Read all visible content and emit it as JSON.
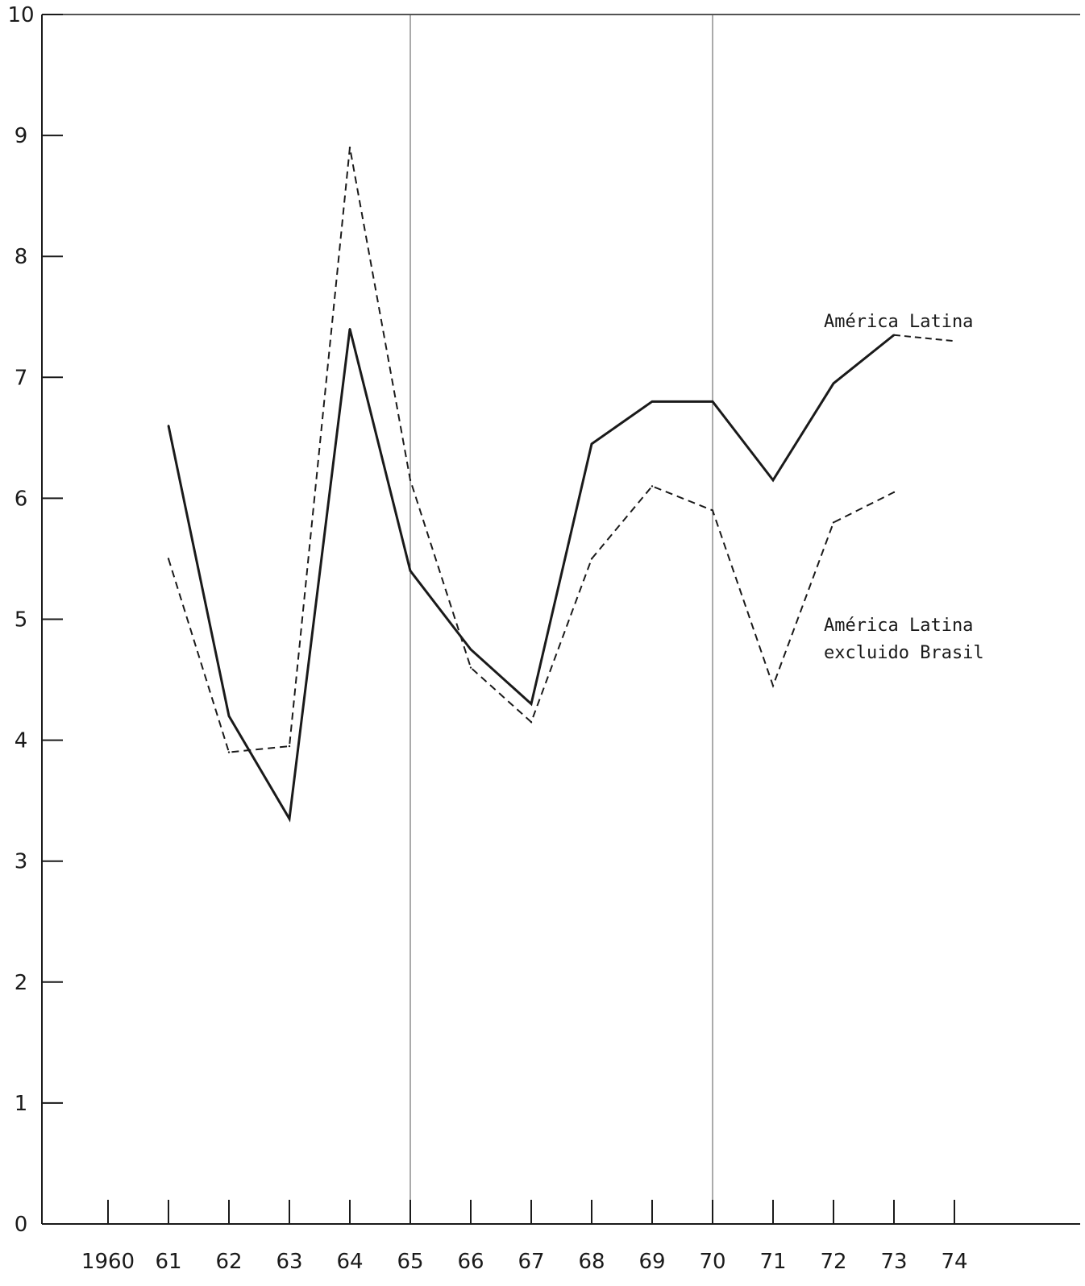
{
  "chart_data": {
    "type": "line",
    "x": [
      1961,
      1962,
      1963,
      1964,
      1965,
      1966,
      1967,
      1968,
      1969,
      1970,
      1971,
      1972,
      1973,
      1974
    ],
    "x_tick_labels": [
      "1960",
      "61",
      "62",
      "63",
      "64",
      "65",
      "66",
      "67",
      "68",
      "69",
      "70",
      "71",
      "72",
      "73",
      "74"
    ],
    "x_tick_values": [
      1960,
      1961,
      1962,
      1963,
      1964,
      1965,
      1966,
      1967,
      1968,
      1969,
      1970,
      1971,
      1972,
      1973,
      1974
    ],
    "y_tick_labels": [
      "0",
      "1",
      "2",
      "3",
      "4",
      "5",
      "6",
      "7",
      "8",
      "9",
      "10"
    ],
    "y_tick_values": [
      0,
      1,
      2,
      3,
      4,
      5,
      6,
      7,
      8,
      9,
      10
    ],
    "xlim": [
      1959,
      1975.5
    ],
    "ylim": [
      0,
      10
    ],
    "vertical_reference_lines": [
      1965,
      1970
    ],
    "grid": false,
    "series": [
      {
        "name": "América Latina",
        "style": "solid",
        "points": [
          [
            1961,
            6.6
          ],
          [
            1962,
            4.2
          ],
          [
            1963,
            3.35
          ],
          [
            1964,
            7.4
          ],
          [
            1965,
            5.4
          ],
          [
            1966,
            4.75
          ],
          [
            1967,
            4.3
          ],
          [
            1968,
            6.45
          ],
          [
            1969,
            6.8
          ],
          [
            1970,
            6.8
          ],
          [
            1971,
            6.15
          ],
          [
            1972,
            6.95
          ],
          [
            1973,
            7.35
          ]
        ],
        "dashed_extension": [
          [
            1973,
            7.35
          ],
          [
            1974,
            7.3
          ]
        ]
      },
      {
        "name": "América Latina\nexcluido Brasil",
        "name_lines": [
          "América Latina",
          "excluido Brasil"
        ],
        "style": "dashed",
        "points": [
          [
            1961,
            5.5
          ],
          [
            1962,
            3.9
          ],
          [
            1963,
            3.95
          ],
          [
            1964,
            8.9
          ],
          [
            1965,
            6.15
          ],
          [
            1966,
            4.6
          ],
          [
            1967,
            4.15
          ],
          [
            1968,
            5.5
          ],
          [
            1969,
            6.1
          ],
          [
            1970,
            5.9
          ],
          [
            1971,
            4.45
          ],
          [
            1972,
            5.8
          ],
          [
            1973,
            6.05
          ]
        ]
      }
    ]
  }
}
